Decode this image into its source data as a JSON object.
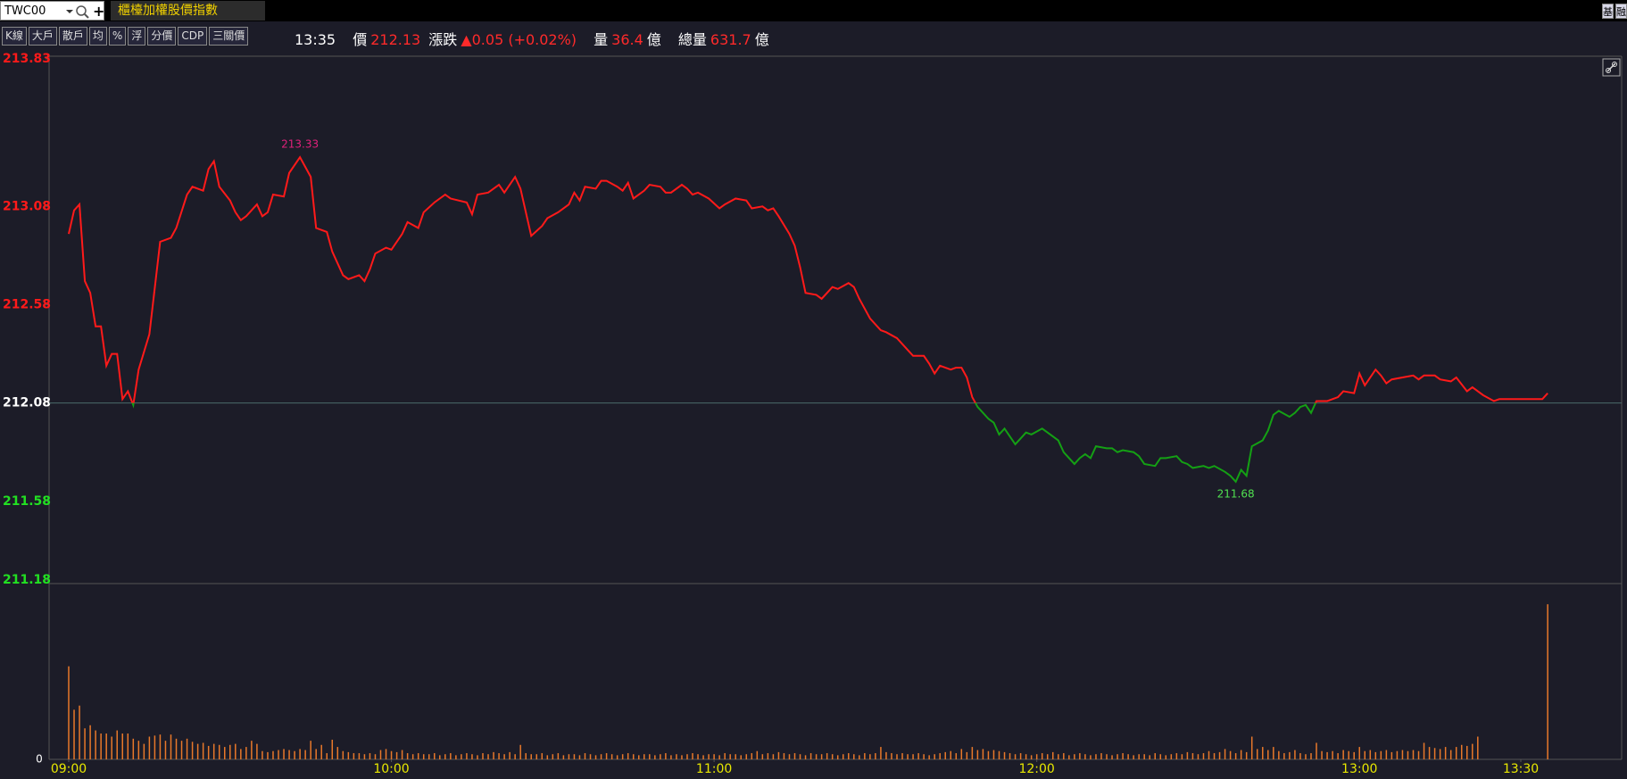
{
  "toolbar": {
    "symbol": "TWC00",
    "add": "+",
    "tab": "櫃檯加權股價指數",
    "side_buttons": [
      "基",
      "融"
    ],
    "buttons": [
      "K線",
      "大戶",
      "散戶",
      "均",
      "%",
      "浮",
      "分價",
      "CDP",
      "三關價"
    ]
  },
  "quote": {
    "time": "13:35",
    "price_label": "價",
    "price": 212.13,
    "change_label": "漲跌",
    "change": "▲0.05 (+0.02%)",
    "volume_label": "量",
    "volume": 36.4,
    "volume_unit": "億",
    "total_label": "總量",
    "total": 631.7,
    "total_unit": "億"
  },
  "chart_data": {
    "type": "line",
    "x": [
      0,
      1,
      2,
      3,
      4,
      5,
      6,
      7,
      8,
      9,
      10,
      11,
      12,
      13,
      15,
      17,
      19,
      20,
      22,
      23,
      25,
      26,
      27,
      28,
      30,
      31,
      32,
      33,
      35,
      36,
      37,
      38,
      40,
      41,
      43,
      45,
      46,
      48,
      49,
      51,
      52,
      54,
      55,
      56,
      57,
      59,
      60,
      62,
      63,
      65,
      66,
      68,
      70,
      71,
      74,
      75,
      76,
      78,
      80,
      81,
      83,
      84,
      86,
      88,
      89,
      91,
      93,
      94,
      95,
      96,
      98,
      99,
      100,
      102,
      103,
      104,
      105,
      107,
      108,
      110,
      111,
      112,
      114,
      115,
      116,
      117,
      119,
      121,
      122,
      124,
      126,
      127,
      129,
      130,
      131,
      132,
      134,
      135,
      136,
      137,
      139,
      140,
      142,
      143,
      145,
      146,
      147,
      149,
      151,
      152,
      154,
      156,
      157,
      159,
      160,
      161,
      162,
      164,
      165,
      166,
      167,
      168,
      169,
      171,
      172,
      173,
      174,
      176,
      178,
      179,
      181,
      182,
      184,
      185,
      187,
      188,
      189,
      190,
      191,
      193,
      194,
      195,
      196,
      198,
      199,
      200,
      202,
      203,
      204,
      206,
      207,
      208,
      209,
      211,
      212,
      213,
      215,
      216,
      217,
      218,
      219,
      220,
      222,
      223,
      224,
      225,
      227,
      228,
      229,
      230,
      231,
      232,
      234,
      236,
      237,
      239,
      240,
      241,
      243,
      244,
      245,
      246,
      248,
      250,
      251,
      252,
      254,
      255,
      257,
      258,
      260,
      261,
      263,
      265,
      266,
      269,
      272,
      274,
      275
    ],
    "values": [
      212.94,
      213.06,
      213.09,
      212.7,
      212.64,
      212.47,
      212.47,
      212.27,
      212.33,
      212.33,
      212.1,
      212.14,
      212.07,
      212.25,
      212.43,
      212.9,
      212.92,
      212.97,
      213.14,
      213.18,
      213.16,
      213.27,
      213.31,
      213.18,
      213.11,
      213.05,
      213.01,
      213.03,
      213.09,
      213.03,
      213.05,
      213.14,
      213.13,
      213.25,
      213.33,
      213.23,
      212.97,
      212.95,
      212.85,
      212.73,
      212.71,
      212.73,
      212.7,
      212.76,
      212.84,
      212.87,
      212.86,
      212.94,
      213.0,
      212.97,
      213.05,
      213.1,
      213.14,
      213.12,
      213.1,
      213.04,
      213.14,
      213.15,
      213.19,
      213.15,
      213.23,
      213.17,
      212.93,
      212.98,
      213.02,
      213.05,
      213.09,
      213.15,
      213.11,
      213.18,
      213.17,
      213.21,
      213.21,
      213.18,
      213.16,
      213.2,
      213.12,
      213.16,
      213.19,
      213.18,
      213.15,
      213.15,
      213.19,
      213.17,
      213.14,
      213.15,
      213.12,
      213.07,
      213.09,
      213.12,
      213.11,
      213.07,
      213.08,
      213.06,
      213.07,
      213.03,
      212.94,
      212.88,
      212.77,
      212.64,
      212.63,
      212.61,
      212.67,
      212.66,
      212.69,
      212.67,
      212.61,
      212.51,
      212.45,
      212.44,
      212.41,
      212.35,
      212.32,
      212.32,
      212.28,
      212.23,
      212.27,
      212.25,
      212.26,
      212.26,
      212.21,
      212.11,
      212.06,
      212.0,
      211.98,
      211.92,
      211.95,
      211.87,
      211.93,
      211.92,
      211.95,
      211.93,
      211.89,
      211.83,
      211.77,
      211.8,
      211.82,
      211.8,
      211.86,
      211.85,
      211.85,
      211.83,
      211.84,
      211.83,
      211.81,
      211.77,
      211.76,
      211.8,
      211.8,
      211.81,
      211.78,
      211.77,
      211.75,
      211.76,
      211.75,
      211.76,
      211.73,
      211.71,
      211.68,
      211.74,
      211.71,
      211.86,
      211.89,
      211.94,
      212.02,
      212.04,
      212.01,
      212.03,
      212.06,
      212.07,
      212.03,
      212.09,
      212.09,
      212.11,
      212.14,
      212.13,
      212.23,
      212.17,
      212.25,
      212.22,
      212.18,
      212.2,
      212.21,
      212.22,
      212.2,
      212.22,
      212.22,
      212.2,
      212.19,
      212.21,
      212.14,
      212.16,
      212.12,
      212.09,
      212.1,
      212.1,
      212.1,
      212.1,
      212.13
    ],
    "reference": 212.08,
    "color_above": "#ff1a1a",
    "color_below": "#14a014",
    "xlim": [
      -3.65,
      288.75
    ],
    "xticks": [
      {
        "value": 0,
        "label": "09:00"
      },
      {
        "value": 60,
        "label": "10:00"
      },
      {
        "value": 120,
        "label": "11:00"
      },
      {
        "value": 180,
        "label": "12:00"
      },
      {
        "value": 240,
        "label": "13:00"
      },
      {
        "value": 270,
        "label": "13:30"
      }
    ],
    "ylim": [
      211.18,
      213.83
    ],
    "yticks": [
      213.83,
      213.08,
      212.58,
      212.08,
      211.58,
      211.18
    ],
    "annotations": [
      {
        "x": 43,
        "y": 213.33,
        "color": "#e0207a"
      },
      {
        "x": 217,
        "y": 211.68,
        "color": "#50e050"
      }
    ],
    "volume": {
      "color": "#e8782a",
      "ylim": [
        0,
        170
      ],
      "yticks": [
        0
      ],
      "x": [
        0,
        1,
        2,
        3,
        4,
        5,
        6,
        7,
        8,
        9,
        10,
        11,
        12,
        13,
        14,
        15,
        16,
        17,
        18,
        19,
        20,
        21,
        22,
        23,
        24,
        25,
        26,
        27,
        28,
        29,
        30,
        31,
        32,
        33,
        34,
        35,
        36,
        37,
        38,
        39,
        40,
        41,
        42,
        43,
        44,
        45,
        46,
        47,
        48,
        49,
        50,
        51,
        52,
        53,
        54,
        55,
        56,
        57,
        58,
        59,
        60,
        61,
        62,
        63,
        64,
        65,
        66,
        67,
        68,
        69,
        70,
        71,
        72,
        73,
        74,
        75,
        76,
        77,
        78,
        79,
        80,
        81,
        82,
        83,
        84,
        85,
        86,
        87,
        88,
        89,
        90,
        91,
        92,
        93,
        94,
        95,
        96,
        97,
        98,
        99,
        100,
        101,
        102,
        103,
        104,
        105,
        106,
        107,
        108,
        109,
        110,
        111,
        112,
        113,
        114,
        115,
        116,
        117,
        118,
        119,
        120,
        121,
        122,
        123,
        124,
        125,
        126,
        127,
        128,
        129,
        130,
        131,
        132,
        133,
        134,
        135,
        136,
        137,
        138,
        139,
        140,
        141,
        142,
        143,
        144,
        145,
        146,
        147,
        148,
        149,
        150,
        151,
        152,
        153,
        154,
        155,
        156,
        157,
        158,
        159,
        160,
        161,
        162,
        163,
        164,
        165,
        166,
        167,
        168,
        169,
        170,
        171,
        172,
        173,
        174,
        175,
        176,
        177,
        178,
        179,
        180,
        181,
        182,
        183,
        184,
        185,
        186,
        187,
        188,
        189,
        190,
        191,
        192,
        193,
        194,
        195,
        196,
        197,
        198,
        199,
        200,
        201,
        202,
        203,
        204,
        205,
        206,
        207,
        208,
        209,
        210,
        211,
        212,
        213,
        214,
        215,
        216,
        217,
        218,
        219,
        220,
        221,
        222,
        223,
        224,
        225,
        226,
        227,
        228,
        229,
        230,
        231,
        232,
        233,
        234,
        235,
        236,
        237,
        238,
        239,
        240,
        241,
        242,
        243,
        244,
        245,
        246,
        247,
        248,
        249,
        250,
        251,
        252,
        253,
        254,
        255,
        256,
        257,
        258,
        259,
        260,
        261,
        262,
        263,
        264,
        265,
        266,
        267,
        268,
        269,
        270,
        271,
        272,
        273,
        274,
        275
      ],
      "values": [
        90,
        48,
        52,
        30,
        33,
        28,
        25,
        25,
        22,
        28,
        25,
        25,
        20,
        18,
        15,
        22,
        23,
        24,
        18,
        24,
        20,
        18,
        20,
        17,
        15,
        16,
        13,
        15,
        14,
        12,
        14,
        15,
        10,
        12,
        18,
        15,
        8,
        7,
        8,
        9,
        10,
        9,
        8,
        10,
        9,
        18,
        10,
        14,
        6,
        19,
        12,
        8,
        7,
        6,
        6,
        5,
        6,
        5,
        9,
        10,
        8,
        7,
        9,
        6,
        5,
        6,
        5,
        5,
        6,
        4,
        5,
        6,
        4,
        5,
        6,
        5,
        4,
        6,
        5,
        7,
        6,
        5,
        7,
        5,
        14,
        6,
        5,
        5,
        6,
        4,
        5,
        6,
        4,
        5,
        5,
        4,
        6,
        5,
        4,
        5,
        6,
        5,
        4,
        5,
        6,
        5,
        4,
        5,
        5,
        4,
        5,
        6,
        4,
        5,
        4,
        5,
        6,
        5,
        4,
        5,
        5,
        4,
        6,
        5,
        5,
        4,
        5,
        6,
        8,
        5,
        6,
        5,
        7,
        6,
        5,
        6,
        5,
        4,
        6,
        5,
        5,
        6,
        5,
        4,
        5,
        6,
        5,
        4,
        6,
        5,
        6,
        12,
        7,
        6,
        5,
        6,
        5,
        5,
        6,
        5,
        4,
        5,
        6,
        7,
        8,
        6,
        10,
        7,
        12,
        9,
        10,
        8,
        9,
        8,
        7,
        6,
        5,
        6,
        5,
        4,
        5,
        6,
        5,
        7,
        5,
        6,
        4,
        5,
        6,
        5,
        4,
        5,
        6,
        5,
        4,
        5,
        6,
        5,
        4,
        5,
        5,
        4,
        6,
        5,
        4,
        5,
        6,
        5,
        7,
        6,
        5,
        6,
        8,
        6,
        7,
        10,
        8,
        6,
        9,
        7,
        22,
        10,
        12,
        9,
        12,
        8,
        6,
        7,
        9,
        6,
        5,
        6,
        16,
        8,
        7,
        8,
        6,
        9,
        8,
        7,
        12,
        8,
        9,
        7,
        8,
        9,
        7,
        8,
        9,
        8,
        9,
        8,
        16,
        12,
        11,
        10,
        12,
        9,
        12,
        14,
        13,
        15,
        22,
        0,
        0,
        0,
        0,
        0,
        0,
        0,
        0,
        0,
        0,
        0,
        0,
        150
      ]
    }
  }
}
